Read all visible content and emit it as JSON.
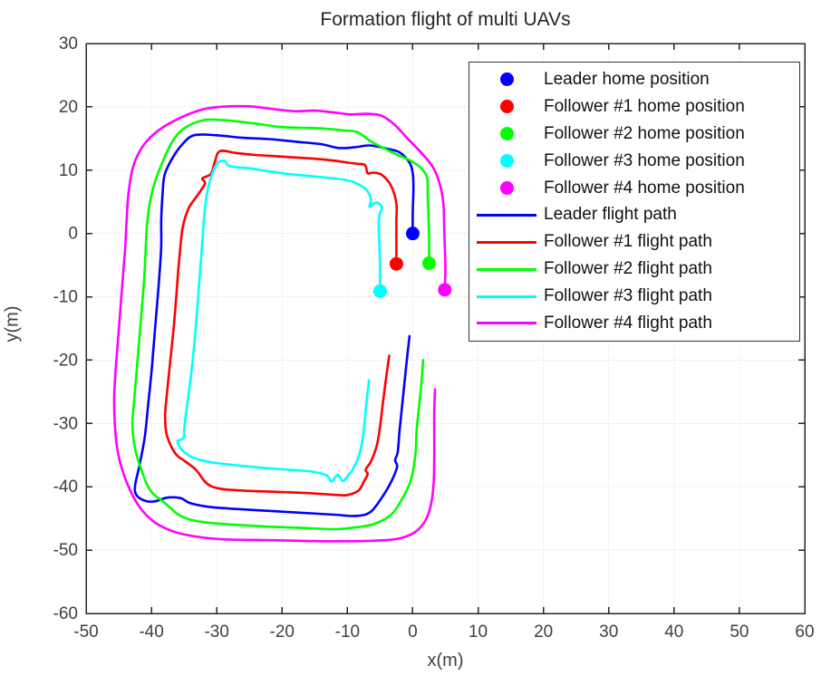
{
  "title": "Formation flight of multi UAVs",
  "axes": {
    "xlabel": "x(m)",
    "ylabel": "y(m)"
  },
  "legend": {
    "entries": [
      {
        "marker": "dot",
        "color": "#0000ff",
        "label": "Leader home position"
      },
      {
        "marker": "dot",
        "color": "#ff0000",
        "label": "Follower #1 home position"
      },
      {
        "marker": "dot",
        "color": "#00ff00",
        "label": "Follower #2 home position"
      },
      {
        "marker": "dot",
        "color": "#00ffff",
        "label": "Follower #3 home position"
      },
      {
        "marker": "dot",
        "color": "#ff00ff",
        "label": "Follower #4 home position"
      },
      {
        "marker": "line",
        "color": "#0000ff",
        "label": "Leader flight path"
      },
      {
        "marker": "line",
        "color": "#ff0000",
        "label": "Follower #1 flight path"
      },
      {
        "marker": "line",
        "color": "#00ff00",
        "label": "Follower #2 flight path"
      },
      {
        "marker": "line",
        "color": "#00ffff",
        "label": "Follower #3 flight path"
      },
      {
        "marker": "line",
        "color": "#ff00ff",
        "label": "Follower #4 flight path"
      }
    ]
  },
  "chart_data": {
    "type": "line",
    "title": "Formation flight of multi UAVs",
    "xlabel": "x(m)",
    "ylabel": "y(m)",
    "xlim": [
      -50,
      60
    ],
    "ylim": [
      -60,
      30
    ],
    "xticks": [
      -50,
      -40,
      -30,
      -20,
      -10,
      0,
      10,
      20,
      30,
      40,
      50,
      60
    ],
    "yticks": [
      -60,
      -50,
      -40,
      -30,
      -20,
      -10,
      0,
      10,
      20,
      30
    ],
    "grid": true,
    "legend_position": "upper right",
    "home_positions": [
      {
        "name": "Leader home position",
        "color": "#0000ff",
        "x": 0,
        "y": 0
      },
      {
        "name": "Follower #1 home position",
        "color": "#ff0000",
        "x": -2.5,
        "y": -4.8
      },
      {
        "name": "Follower #2 home position",
        "color": "#00ff00",
        "x": 2.5,
        "y": -4.7
      },
      {
        "name": "Follower #3 home position",
        "color": "#00ffff",
        "x": -5,
        "y": -9.1
      },
      {
        "name": "Follower #4 home position",
        "color": "#ff00ff",
        "x": 4.9,
        "y": -8.9
      }
    ],
    "series": [
      {
        "name": "Leader flight path",
        "color": "#0000ff",
        "points": [
          [
            0,
            0
          ],
          [
            0,
            3.5
          ],
          [
            0.1,
            7
          ],
          [
            0,
            9.5
          ],
          [
            -0.5,
            11.2
          ],
          [
            -2,
            12.8
          ],
          [
            -4,
            13.4
          ],
          [
            -6.6,
            13.9
          ],
          [
            -9,
            13.6
          ],
          [
            -11.4,
            13.5
          ],
          [
            -14,
            14.1
          ],
          [
            -18,
            14.5
          ],
          [
            -22,
            14.9
          ],
          [
            -26,
            15.1
          ],
          [
            -30,
            15.5
          ],
          [
            -33.5,
            15.5
          ],
          [
            -35.5,
            13.8
          ],
          [
            -37,
            11.5
          ],
          [
            -38,
            9.2
          ],
          [
            -38.3,
            6
          ],
          [
            -38.5,
            2
          ],
          [
            -38.5,
            -2
          ],
          [
            -38.8,
            -7
          ],
          [
            -39.2,
            -12
          ],
          [
            -39.6,
            -17
          ],
          [
            -40,
            -22
          ],
          [
            -40.5,
            -27
          ],
          [
            -41,
            -32
          ],
          [
            -41.8,
            -36.5
          ],
          [
            -42.5,
            -39.8
          ],
          [
            -42.3,
            -41.3
          ],
          [
            -41,
            -42.2
          ],
          [
            -39.5,
            -42.3
          ],
          [
            -37.5,
            -41.7
          ],
          [
            -35.5,
            -41.8
          ],
          [
            -34,
            -42.6
          ],
          [
            -31,
            -43.2
          ],
          [
            -27,
            -43.5
          ],
          [
            -22,
            -43.8
          ],
          [
            -17,
            -44.1
          ],
          [
            -12,
            -44.4
          ],
          [
            -8.8,
            -44.6
          ],
          [
            -6.5,
            -44
          ],
          [
            -4.6,
            -41.5
          ],
          [
            -3.2,
            -39
          ],
          [
            -2.4,
            -36.8
          ],
          [
            -2.7,
            -35.8
          ],
          [
            -2.3,
            -34.5
          ],
          [
            -2,
            -31
          ],
          [
            -1.5,
            -26
          ],
          [
            -1,
            -21
          ],
          [
            -0.5,
            -16.2
          ]
        ]
      },
      {
        "name": "Follower #1 flight path",
        "color": "#ff0000",
        "points": [
          [
            -2.5,
            -4.8
          ],
          [
            -2.5,
            -1
          ],
          [
            -2.5,
            2
          ],
          [
            -2.5,
            4.7
          ],
          [
            -3.3,
            7.5
          ],
          [
            -4.8,
            9.3
          ],
          [
            -6.2,
            9.6
          ],
          [
            -6.9,
            9.5
          ],
          [
            -7.3,
            10.8
          ],
          [
            -8.5,
            11
          ],
          [
            -10,
            11.2
          ],
          [
            -12,
            11.5
          ],
          [
            -15,
            11.8
          ],
          [
            -18,
            12
          ],
          [
            -21,
            12.2
          ],
          [
            -24,
            12.4
          ],
          [
            -27,
            12.7
          ],
          [
            -29.5,
            13
          ],
          [
            -30.3,
            11.3
          ],
          [
            -30.9,
            9.4
          ],
          [
            -32.2,
            8.7
          ],
          [
            -31.8,
            7.9
          ],
          [
            -32.9,
            6.1
          ],
          [
            -34.3,
            4
          ],
          [
            -35.2,
            1
          ],
          [
            -35.6,
            -2.5
          ],
          [
            -35.9,
            -6
          ],
          [
            -36.2,
            -10
          ],
          [
            -36.6,
            -15
          ],
          [
            -37.1,
            -20
          ],
          [
            -37.6,
            -25
          ],
          [
            -37.9,
            -29
          ],
          [
            -37.6,
            -32
          ],
          [
            -36.3,
            -34.8
          ],
          [
            -34.8,
            -36
          ],
          [
            -33.2,
            -37.3
          ],
          [
            -31.5,
            -39.5
          ],
          [
            -29.5,
            -40.3
          ],
          [
            -26,
            -40.6
          ],
          [
            -21,
            -40.8
          ],
          [
            -16,
            -41
          ],
          [
            -11.5,
            -41.3
          ],
          [
            -10,
            -41.3
          ],
          [
            -8.3,
            -40.6
          ],
          [
            -7.5,
            -39.2
          ],
          [
            -6.9,
            -38
          ],
          [
            -7.2,
            -37.3
          ],
          [
            -6.4,
            -36
          ],
          [
            -5.5,
            -33.5
          ],
          [
            -5,
            -30.5
          ],
          [
            -4.6,
            -27
          ],
          [
            -4.1,
            -23
          ],
          [
            -3.6,
            -19.3
          ]
        ]
      },
      {
        "name": "Follower #2 flight path",
        "color": "#00ff00",
        "points": [
          [
            2.5,
            -4.7
          ],
          [
            2.5,
            -1
          ],
          [
            2.4,
            3
          ],
          [
            2.3,
            6
          ],
          [
            2.2,
            8.8
          ],
          [
            1.2,
            10.4
          ],
          [
            -0.5,
            11.6
          ],
          [
            -2.1,
            12.3
          ],
          [
            -4.5,
            13.5
          ],
          [
            -6.5,
            14.6
          ],
          [
            -8.5,
            16
          ],
          [
            -11,
            16.3
          ],
          [
            -14,
            16.6
          ],
          [
            -17,
            16.7
          ],
          [
            -20,
            16.8
          ],
          [
            -23,
            17.2
          ],
          [
            -26,
            17.6
          ],
          [
            -29,
            17.9
          ],
          [
            -32,
            17.9
          ],
          [
            -35,
            16.6
          ],
          [
            -36.8,
            14.5
          ],
          [
            -38.2,
            11.5
          ],
          [
            -39.5,
            8
          ],
          [
            -40.3,
            4.5
          ],
          [
            -40.7,
            1
          ],
          [
            -40.9,
            -3
          ],
          [
            -41.1,
            -7
          ],
          [
            -41.4,
            -11
          ],
          [
            -41.8,
            -16
          ],
          [
            -42.2,
            -21
          ],
          [
            -42.6,
            -26
          ],
          [
            -42.9,
            -30
          ],
          [
            -42.5,
            -34
          ],
          [
            -41.2,
            -38.3
          ],
          [
            -40,
            -40.8
          ],
          [
            -38,
            -42.5
          ],
          [
            -36,
            -44.3
          ],
          [
            -34,
            -45.2
          ],
          [
            -31,
            -45.7
          ],
          [
            -27,
            -46
          ],
          [
            -22,
            -46.3
          ],
          [
            -17,
            -46.5
          ],
          [
            -12,
            -46.7
          ],
          [
            -9.5,
            -46.5
          ],
          [
            -6,
            -45.9
          ],
          [
            -3.2,
            -44.3
          ],
          [
            -1.4,
            -41.5
          ],
          [
            -0.3,
            -39
          ],
          [
            0.4,
            -35
          ],
          [
            0.6,
            -31
          ],
          [
            0.9,
            -28
          ],
          [
            1.3,
            -24
          ],
          [
            1.6,
            -20
          ]
        ]
      },
      {
        "name": "Follower #3 flight path",
        "color": "#00ffff",
        "points": [
          [
            -5,
            -9.1
          ],
          [
            -5,
            -5.5
          ],
          [
            -5.1,
            -2
          ],
          [
            -5.2,
            1
          ],
          [
            -5.1,
            2.9
          ],
          [
            -4.7,
            4.1
          ],
          [
            -5.6,
            4.9
          ],
          [
            -6.6,
            4.2
          ],
          [
            -6.4,
            5.5
          ],
          [
            -7.2,
            7
          ],
          [
            -8.8,
            8
          ],
          [
            -10.5,
            8.5
          ],
          [
            -13,
            8.8
          ],
          [
            -16,
            9.1
          ],
          [
            -19,
            9.4
          ],
          [
            -22,
            9.8
          ],
          [
            -25,
            10.3
          ],
          [
            -27.3,
            10.5
          ],
          [
            -28.3,
            10.8
          ],
          [
            -28.9,
            11.5
          ],
          [
            -30,
            11
          ],
          [
            -30.9,
            8.8
          ],
          [
            -31.5,
            6.3
          ],
          [
            -31.9,
            3
          ],
          [
            -32.1,
            0
          ],
          [
            -32.4,
            -4
          ],
          [
            -32.7,
            -8
          ],
          [
            -33,
            -12
          ],
          [
            -33.4,
            -17
          ],
          [
            -33.9,
            -22
          ],
          [
            -34.4,
            -26
          ],
          [
            -34.9,
            -30
          ],
          [
            -35.1,
            -32.3
          ],
          [
            -36,
            -32.8
          ],
          [
            -35.3,
            -34.2
          ],
          [
            -33.6,
            -35.4
          ],
          [
            -31,
            -36.1
          ],
          [
            -27,
            -36.6
          ],
          [
            -23,
            -37
          ],
          [
            -19,
            -37.3
          ],
          [
            -15.5,
            -37.6
          ],
          [
            -13.2,
            -38.2
          ],
          [
            -12.4,
            -39.2
          ],
          [
            -11.5,
            -38.1
          ],
          [
            -10.7,
            -39.1
          ],
          [
            -9.9,
            -38.2
          ],
          [
            -9.2,
            -37.3
          ],
          [
            -8.2,
            -35
          ],
          [
            -7.6,
            -32
          ],
          [
            -7.3,
            -29
          ],
          [
            -7,
            -26
          ],
          [
            -6.7,
            -23.2
          ]
        ]
      },
      {
        "name": "Follower #4 flight path",
        "color": "#ff00ff",
        "points": [
          [
            4.9,
            -8.9
          ],
          [
            5,
            -5.5
          ],
          [
            4.9,
            -2
          ],
          [
            4.8,
            1.5
          ],
          [
            4.7,
            4.7
          ],
          [
            4.2,
            7.6
          ],
          [
            3.2,
            10.3
          ],
          [
            1.6,
            12.4
          ],
          [
            -0.8,
            15
          ],
          [
            -2.8,
            17.2
          ],
          [
            -4.8,
            18.6
          ],
          [
            -7,
            18.9
          ],
          [
            -9.5,
            18.8
          ],
          [
            -12,
            19.1
          ],
          [
            -15,
            19.4
          ],
          [
            -18,
            19.3
          ],
          [
            -21,
            19.6
          ],
          [
            -24,
            20
          ],
          [
            -26.5,
            20.1
          ],
          [
            -29.5,
            20
          ],
          [
            -32.5,
            19.5
          ],
          [
            -36.5,
            17.8
          ],
          [
            -39.5,
            15.8
          ],
          [
            -41.5,
            13.5
          ],
          [
            -42.8,
            10.5
          ],
          [
            -43.5,
            6.5
          ],
          [
            -43.8,
            2
          ],
          [
            -44,
            -2
          ],
          [
            -44.3,
            -6
          ],
          [
            -44.6,
            -10
          ],
          [
            -44.9,
            -14
          ],
          [
            -45.2,
            -18
          ],
          [
            -45.5,
            -22
          ],
          [
            -45.7,
            -26
          ],
          [
            -45.6,
            -30
          ],
          [
            -45.3,
            -33.5
          ],
          [
            -44.7,
            -36.5
          ],
          [
            -43.5,
            -40
          ],
          [
            -41.8,
            -43.2
          ],
          [
            -39.5,
            -45.6
          ],
          [
            -36.5,
            -47.1
          ],
          [
            -33,
            -47.9
          ],
          [
            -29,
            -48.3
          ],
          [
            -24,
            -48.4
          ],
          [
            -19,
            -48.5
          ],
          [
            -14,
            -48.6
          ],
          [
            -9.5,
            -48.6
          ],
          [
            -5.5,
            -48.5
          ],
          [
            -2.2,
            -48.2
          ],
          [
            0.3,
            -47.2
          ],
          [
            1.9,
            -45.4
          ],
          [
            2.8,
            -42.8
          ],
          [
            3.2,
            -39.5
          ],
          [
            3.3,
            -35.5
          ],
          [
            3.3,
            -31.5
          ],
          [
            3.3,
            -28
          ],
          [
            3.4,
            -24.6
          ]
        ]
      }
    ]
  }
}
